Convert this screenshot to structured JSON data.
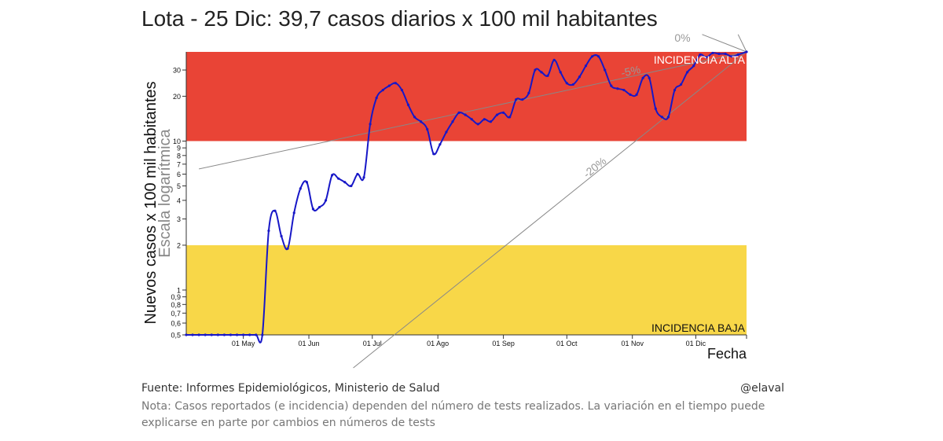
{
  "title": "Lota - 25 Dic: 39,7 casos diarios x 100 mil habitantes",
  "source": "Fuente: Informes Epidemiológicos, Ministerio de Salud",
  "handle": "@elaval",
  "note": "Nota: Casos reportados (e incidencia) dependen del número de tests realizados. La variación en el tiempo puede explicarse en parte por cambios en números de tests",
  "colors": {
    "high_band": "#e94436",
    "low_band": "#f8d748",
    "line": "#1717c7",
    "trend": "#888888"
  },
  "chart_data": {
    "type": "line",
    "title": "Lota - 25 Dic: 39,7 casos diarios x 100 mil habitantes",
    "xlabel": "Fecha",
    "ylabel": "Nuevos casos x 100 mil habitantes",
    "ylabel_sub": "Escala logarítmica",
    "y_scale": "log",
    "ylim": [
      0.5,
      39.7
    ],
    "xlim": [
      "2020-04-04",
      "2020-12-25"
    ],
    "x_ticks": [
      {
        "date": "2020-05-01",
        "label": "01 May"
      },
      {
        "date": "2020-06-01",
        "label": "01 Jun"
      },
      {
        "date": "2020-07-01",
        "label": "01 Jul"
      },
      {
        "date": "2020-08-01",
        "label": "01 Ago"
      },
      {
        "date": "2020-09-01",
        "label": "01 Sep"
      },
      {
        "date": "2020-10-01",
        "label": "01 Oct"
      },
      {
        "date": "2020-11-01",
        "label": "01 Nov"
      },
      {
        "date": "2020-12-01",
        "label": "01 Dic"
      }
    ],
    "y_ticks": [
      {
        "value": 0.5,
        "label": "0,5"
      },
      {
        "value": 0.6,
        "label": "0,6"
      },
      {
        "value": 0.7,
        "label": "0,7"
      },
      {
        "value": 0.8,
        "label": "0,8"
      },
      {
        "value": 0.9,
        "label": "0,9"
      },
      {
        "value": 1,
        "label": "1"
      },
      {
        "value": 2,
        "label": "2"
      },
      {
        "value": 3,
        "label": "3"
      },
      {
        "value": 4,
        "label": "4"
      },
      {
        "value": 5,
        "label": "5"
      },
      {
        "value": 6,
        "label": "6"
      },
      {
        "value": 7,
        "label": "7"
      },
      {
        "value": 8,
        "label": "8"
      },
      {
        "value": 9,
        "label": "9"
      },
      {
        "value": 10,
        "label": "10"
      },
      {
        "value": 20,
        "label": "20"
      },
      {
        "value": 30,
        "label": "30"
      }
    ],
    "bands": [
      {
        "label": "INCIDENCIA ALTA",
        "from": 10,
        "to": 39.7,
        "color": "#e94436",
        "text_color": "#ffffff"
      },
      {
        "label": "INCIDENCIA BAJA",
        "from": 0.5,
        "to": 2,
        "color": "#f8d748",
        "text_color": "#111111"
      }
    ],
    "trend_lines": [
      {
        "label": "0%",
        "from": {
          "date": "2020-12-04",
          "value": 52
        },
        "to": {
          "date": "2020-12-25",
          "value": 39.7
        }
      },
      {
        "label": "-5%",
        "from": {
          "date": "2020-04-10",
          "value": 6.5
        },
        "to": {
          "date": "2020-12-25",
          "value": 39.7
        }
      },
      {
        "label": "-20%",
        "from": {
          "date": "2020-06-22",
          "value": 0.3
        },
        "to": {
          "date": "2020-12-25",
          "value": 39.7
        }
      },
      {
        "label": "",
        "from": {
          "date": "2020-12-21",
          "value": 52
        },
        "to": {
          "date": "2020-12-25",
          "value": 39.7
        }
      }
    ],
    "series": [
      {
        "points": [
          {
            "x": "2020-04-04",
            "y": 0.5
          },
          {
            "x": "2020-04-07",
            "y": 0.5
          },
          {
            "x": "2020-04-10",
            "y": 0.5
          },
          {
            "x": "2020-04-13",
            "y": 0.5
          },
          {
            "x": "2020-04-16",
            "y": 0.5
          },
          {
            "x": "2020-04-19",
            "y": 0.5
          },
          {
            "x": "2020-04-22",
            "y": 0.5
          },
          {
            "x": "2020-04-25",
            "y": 0.5
          },
          {
            "x": "2020-04-28",
            "y": 0.5
          },
          {
            "x": "2020-05-01",
            "y": 0.5
          },
          {
            "x": "2020-05-04",
            "y": 0.5
          },
          {
            "x": "2020-05-07",
            "y": 0.5
          },
          {
            "x": "2020-05-10",
            "y": 0.5
          },
          {
            "x": "2020-05-13",
            "y": 2.5
          },
          {
            "x": "2020-05-16",
            "y": 3.4
          },
          {
            "x": "2020-05-19",
            "y": 2.3
          },
          {
            "x": "2020-05-22",
            "y": 1.9
          },
          {
            "x": "2020-05-25",
            "y": 3.3
          },
          {
            "x": "2020-05-28",
            "y": 4.8
          },
          {
            "x": "2020-05-31",
            "y": 5.3
          },
          {
            "x": "2020-06-03",
            "y": 3.5
          },
          {
            "x": "2020-06-06",
            "y": 3.6
          },
          {
            "x": "2020-06-09",
            "y": 4.0
          },
          {
            "x": "2020-06-12",
            "y": 5.9
          },
          {
            "x": "2020-06-15",
            "y": 5.6
          },
          {
            "x": "2020-06-18",
            "y": 5.3
          },
          {
            "x": "2020-06-21",
            "y": 5.0
          },
          {
            "x": "2020-06-24",
            "y": 6.0
          },
          {
            "x": "2020-06-27",
            "y": 5.7
          },
          {
            "x": "2020-06-30",
            "y": 13.0
          },
          {
            "x": "2020-07-03",
            "y": 19.5
          },
          {
            "x": "2020-07-06",
            "y": 22.0
          },
          {
            "x": "2020-07-09",
            "y": 23.5
          },
          {
            "x": "2020-07-12",
            "y": 24.5
          },
          {
            "x": "2020-07-15",
            "y": 22.0
          },
          {
            "x": "2020-07-18",
            "y": 17.5
          },
          {
            "x": "2020-07-21",
            "y": 14.5
          },
          {
            "x": "2020-07-24",
            "y": 13.5
          },
          {
            "x": "2020-07-27",
            "y": 12.0
          },
          {
            "x": "2020-07-30",
            "y": 8.2
          },
          {
            "x": "2020-08-02",
            "y": 9.5
          },
          {
            "x": "2020-08-05",
            "y": 11.5
          },
          {
            "x": "2020-08-08",
            "y": 13.5
          },
          {
            "x": "2020-08-11",
            "y": 15.5
          },
          {
            "x": "2020-08-14",
            "y": 15.0
          },
          {
            "x": "2020-08-17",
            "y": 14.0
          },
          {
            "x": "2020-08-20",
            "y": 13.0
          },
          {
            "x": "2020-08-23",
            "y": 14.0
          },
          {
            "x": "2020-08-26",
            "y": 13.5
          },
          {
            "x": "2020-08-29",
            "y": 15.0
          },
          {
            "x": "2020-09-01",
            "y": 15.5
          },
          {
            "x": "2020-09-04",
            "y": 14.5
          },
          {
            "x": "2020-09-07",
            "y": 19.0
          },
          {
            "x": "2020-09-10",
            "y": 19.0
          },
          {
            "x": "2020-09-13",
            "y": 21.0
          },
          {
            "x": "2020-09-16",
            "y": 30.0
          },
          {
            "x": "2020-09-19",
            "y": 29.0
          },
          {
            "x": "2020-09-22",
            "y": 27.5
          },
          {
            "x": "2020-09-25",
            "y": 35.0
          },
          {
            "x": "2020-09-28",
            "y": 29.0
          },
          {
            "x": "2020-10-01",
            "y": 24.5
          },
          {
            "x": "2020-10-04",
            "y": 24.0
          },
          {
            "x": "2020-10-07",
            "y": 27.0
          },
          {
            "x": "2020-10-10",
            "y": 32.0
          },
          {
            "x": "2020-10-13",
            "y": 37.0
          },
          {
            "x": "2020-10-16",
            "y": 37.0
          },
          {
            "x": "2020-10-19",
            "y": 30.0
          },
          {
            "x": "2020-10-22",
            "y": 23.5
          },
          {
            "x": "2020-10-25",
            "y": 22.5
          },
          {
            "x": "2020-10-28",
            "y": 22.0
          },
          {
            "x": "2020-10-31",
            "y": 20.5
          },
          {
            "x": "2020-11-03",
            "y": 20.5
          },
          {
            "x": "2020-11-06",
            "y": 26.5
          },
          {
            "x": "2020-11-09",
            "y": 26.5
          },
          {
            "x": "2020-11-12",
            "y": 16.5
          },
          {
            "x": "2020-11-15",
            "y": 14.5
          },
          {
            "x": "2020-11-18",
            "y": 14.5
          },
          {
            "x": "2020-11-21",
            "y": 22.0
          },
          {
            "x": "2020-11-24",
            "y": 24.0
          },
          {
            "x": "2020-11-27",
            "y": 29.0
          },
          {
            "x": "2020-11-30",
            "y": 32.0
          },
          {
            "x": "2020-12-03",
            "y": 38.0
          },
          {
            "x": "2020-12-06",
            "y": 36.5
          },
          {
            "x": "2020-12-09",
            "y": 39.0
          },
          {
            "x": "2020-12-12",
            "y": 38.5
          },
          {
            "x": "2020-12-15",
            "y": 38.5
          },
          {
            "x": "2020-12-18",
            "y": 37.0
          },
          {
            "x": "2020-12-21",
            "y": 38.0
          },
          {
            "x": "2020-12-25",
            "y": 39.7
          }
        ]
      }
    ]
  }
}
